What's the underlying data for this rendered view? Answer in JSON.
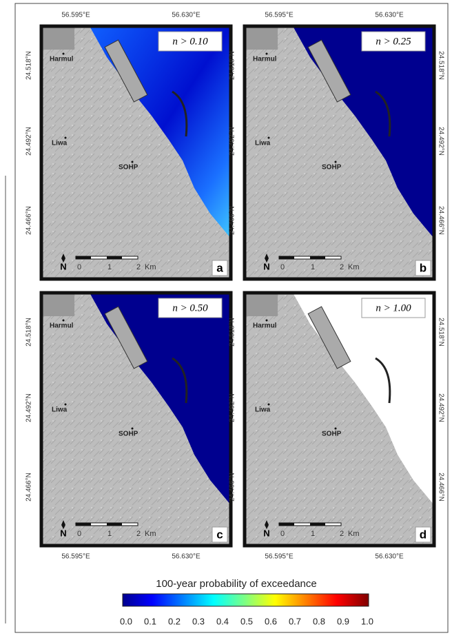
{
  "panels": [
    {
      "letter": "a",
      "threshold": "n > 0.10"
    },
    {
      "letter": "b",
      "threshold": "n > 0.25"
    },
    {
      "letter": "c",
      "threshold": "n > 0.50"
    },
    {
      "letter": "d",
      "threshold": "n > 1.00"
    }
  ],
  "places": [
    "Harmul",
    "Liwa",
    "SOHP"
  ],
  "lon_labels": [
    "56.595°E",
    "56.630°E"
  ],
  "lat_labels": [
    "24.518°N",
    "24.492°N",
    "24.466°N"
  ],
  "scale_bar": {
    "north": "N",
    "labels": [
      "0",
      "1",
      "2",
      "Km"
    ]
  },
  "colorbar": {
    "title": "100-year probability of exceedance",
    "ticks": [
      "0.0",
      "0.1",
      "0.2",
      "0.3",
      "0.4",
      "0.5",
      "0.6",
      "0.7",
      "0.8",
      "0.9",
      "1.0"
    ]
  }
}
